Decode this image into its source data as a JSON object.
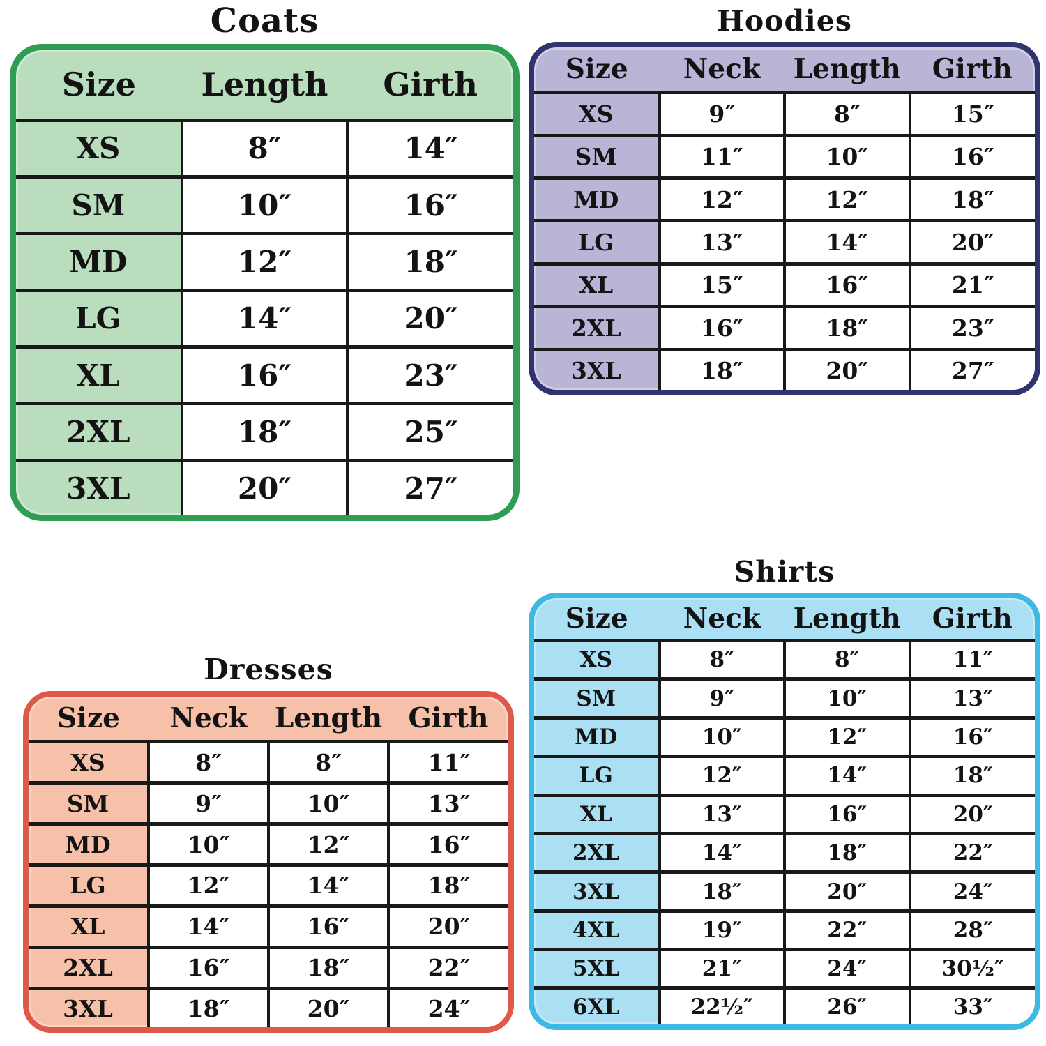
{
  "page": {
    "background": "#ffffff",
    "grid_line_color": "#191919",
    "cell_background": "#ffffff",
    "text_color": "#131313"
  },
  "charts": [
    {
      "id": "coats",
      "title": "Coats",
      "border_color": "#2f9e53",
      "fill_color": "#b9ddbd",
      "columns": [
        "Size",
        "Length",
        "Girth"
      ],
      "rows": [
        [
          "XS",
          "8″",
          "14″"
        ],
        [
          "SM",
          "10″",
          "16″"
        ],
        [
          "MD",
          "12″",
          "18″"
        ],
        [
          "LG",
          "14″",
          "20″"
        ],
        [
          "XL",
          "16″",
          "23″"
        ],
        [
          "2XL",
          "18″",
          "25″"
        ],
        [
          "3XL",
          "20″",
          "27″"
        ]
      ]
    },
    {
      "id": "hoodies",
      "title": "Hoodies",
      "border_color": "#31336e",
      "fill_color": "#b9b5d6",
      "columns": [
        "Size",
        "Neck",
        "Length",
        "Girth"
      ],
      "rows": [
        [
          "XS",
          "9″",
          "8″",
          "15″"
        ],
        [
          "SM",
          "11″",
          "10″",
          "16″"
        ],
        [
          "MD",
          "12″",
          "12″",
          "18″"
        ],
        [
          "LG",
          "13″",
          "14″",
          "20″"
        ],
        [
          "XL",
          "15″",
          "16″",
          "21″"
        ],
        [
          "2XL",
          "16″",
          "18″",
          "23″"
        ],
        [
          "3XL",
          "18″",
          "20″",
          "27″"
        ]
      ]
    },
    {
      "id": "dresses",
      "title": "Dresses",
      "border_color": "#df5948",
      "fill_color": "#f6c0a9",
      "columns": [
        "Size",
        "Neck",
        "Length",
        "Girth"
      ],
      "rows": [
        [
          "XS",
          "8″",
          "8″",
          "11″"
        ],
        [
          "SM",
          "9″",
          "10″",
          "13″"
        ],
        [
          "MD",
          "10″",
          "12″",
          "16″"
        ],
        [
          "LG",
          "12″",
          "14″",
          "18″"
        ],
        [
          "XL",
          "14″",
          "16″",
          "20″"
        ],
        [
          "2XL",
          "16″",
          "18″",
          "22″"
        ],
        [
          "3XL",
          "18″",
          "20″",
          "24″"
        ]
      ]
    },
    {
      "id": "shirts",
      "title": "Shirts",
      "border_color": "#3db9e5",
      "fill_color": "#abdff4",
      "columns": [
        "Size",
        "Neck",
        "Length",
        "Girth"
      ],
      "rows": [
        [
          "XS",
          "8″",
          "8″",
          "11″"
        ],
        [
          "SM",
          "9″",
          "10″",
          "13″"
        ],
        [
          "MD",
          "10″",
          "12″",
          "16″"
        ],
        [
          "LG",
          "12″",
          "14″",
          "18″"
        ],
        [
          "XL",
          "13″",
          "16″",
          "20″"
        ],
        [
          "2XL",
          "14″",
          "18″",
          "22″"
        ],
        [
          "3XL",
          "18″",
          "20″",
          "24″"
        ],
        [
          "4XL",
          "19″",
          "22″",
          "28″"
        ],
        [
          "5XL",
          "21″",
          "24″",
          "30½″"
        ],
        [
          "6XL",
          "22½″",
          "26″",
          "33″"
        ]
      ]
    }
  ]
}
